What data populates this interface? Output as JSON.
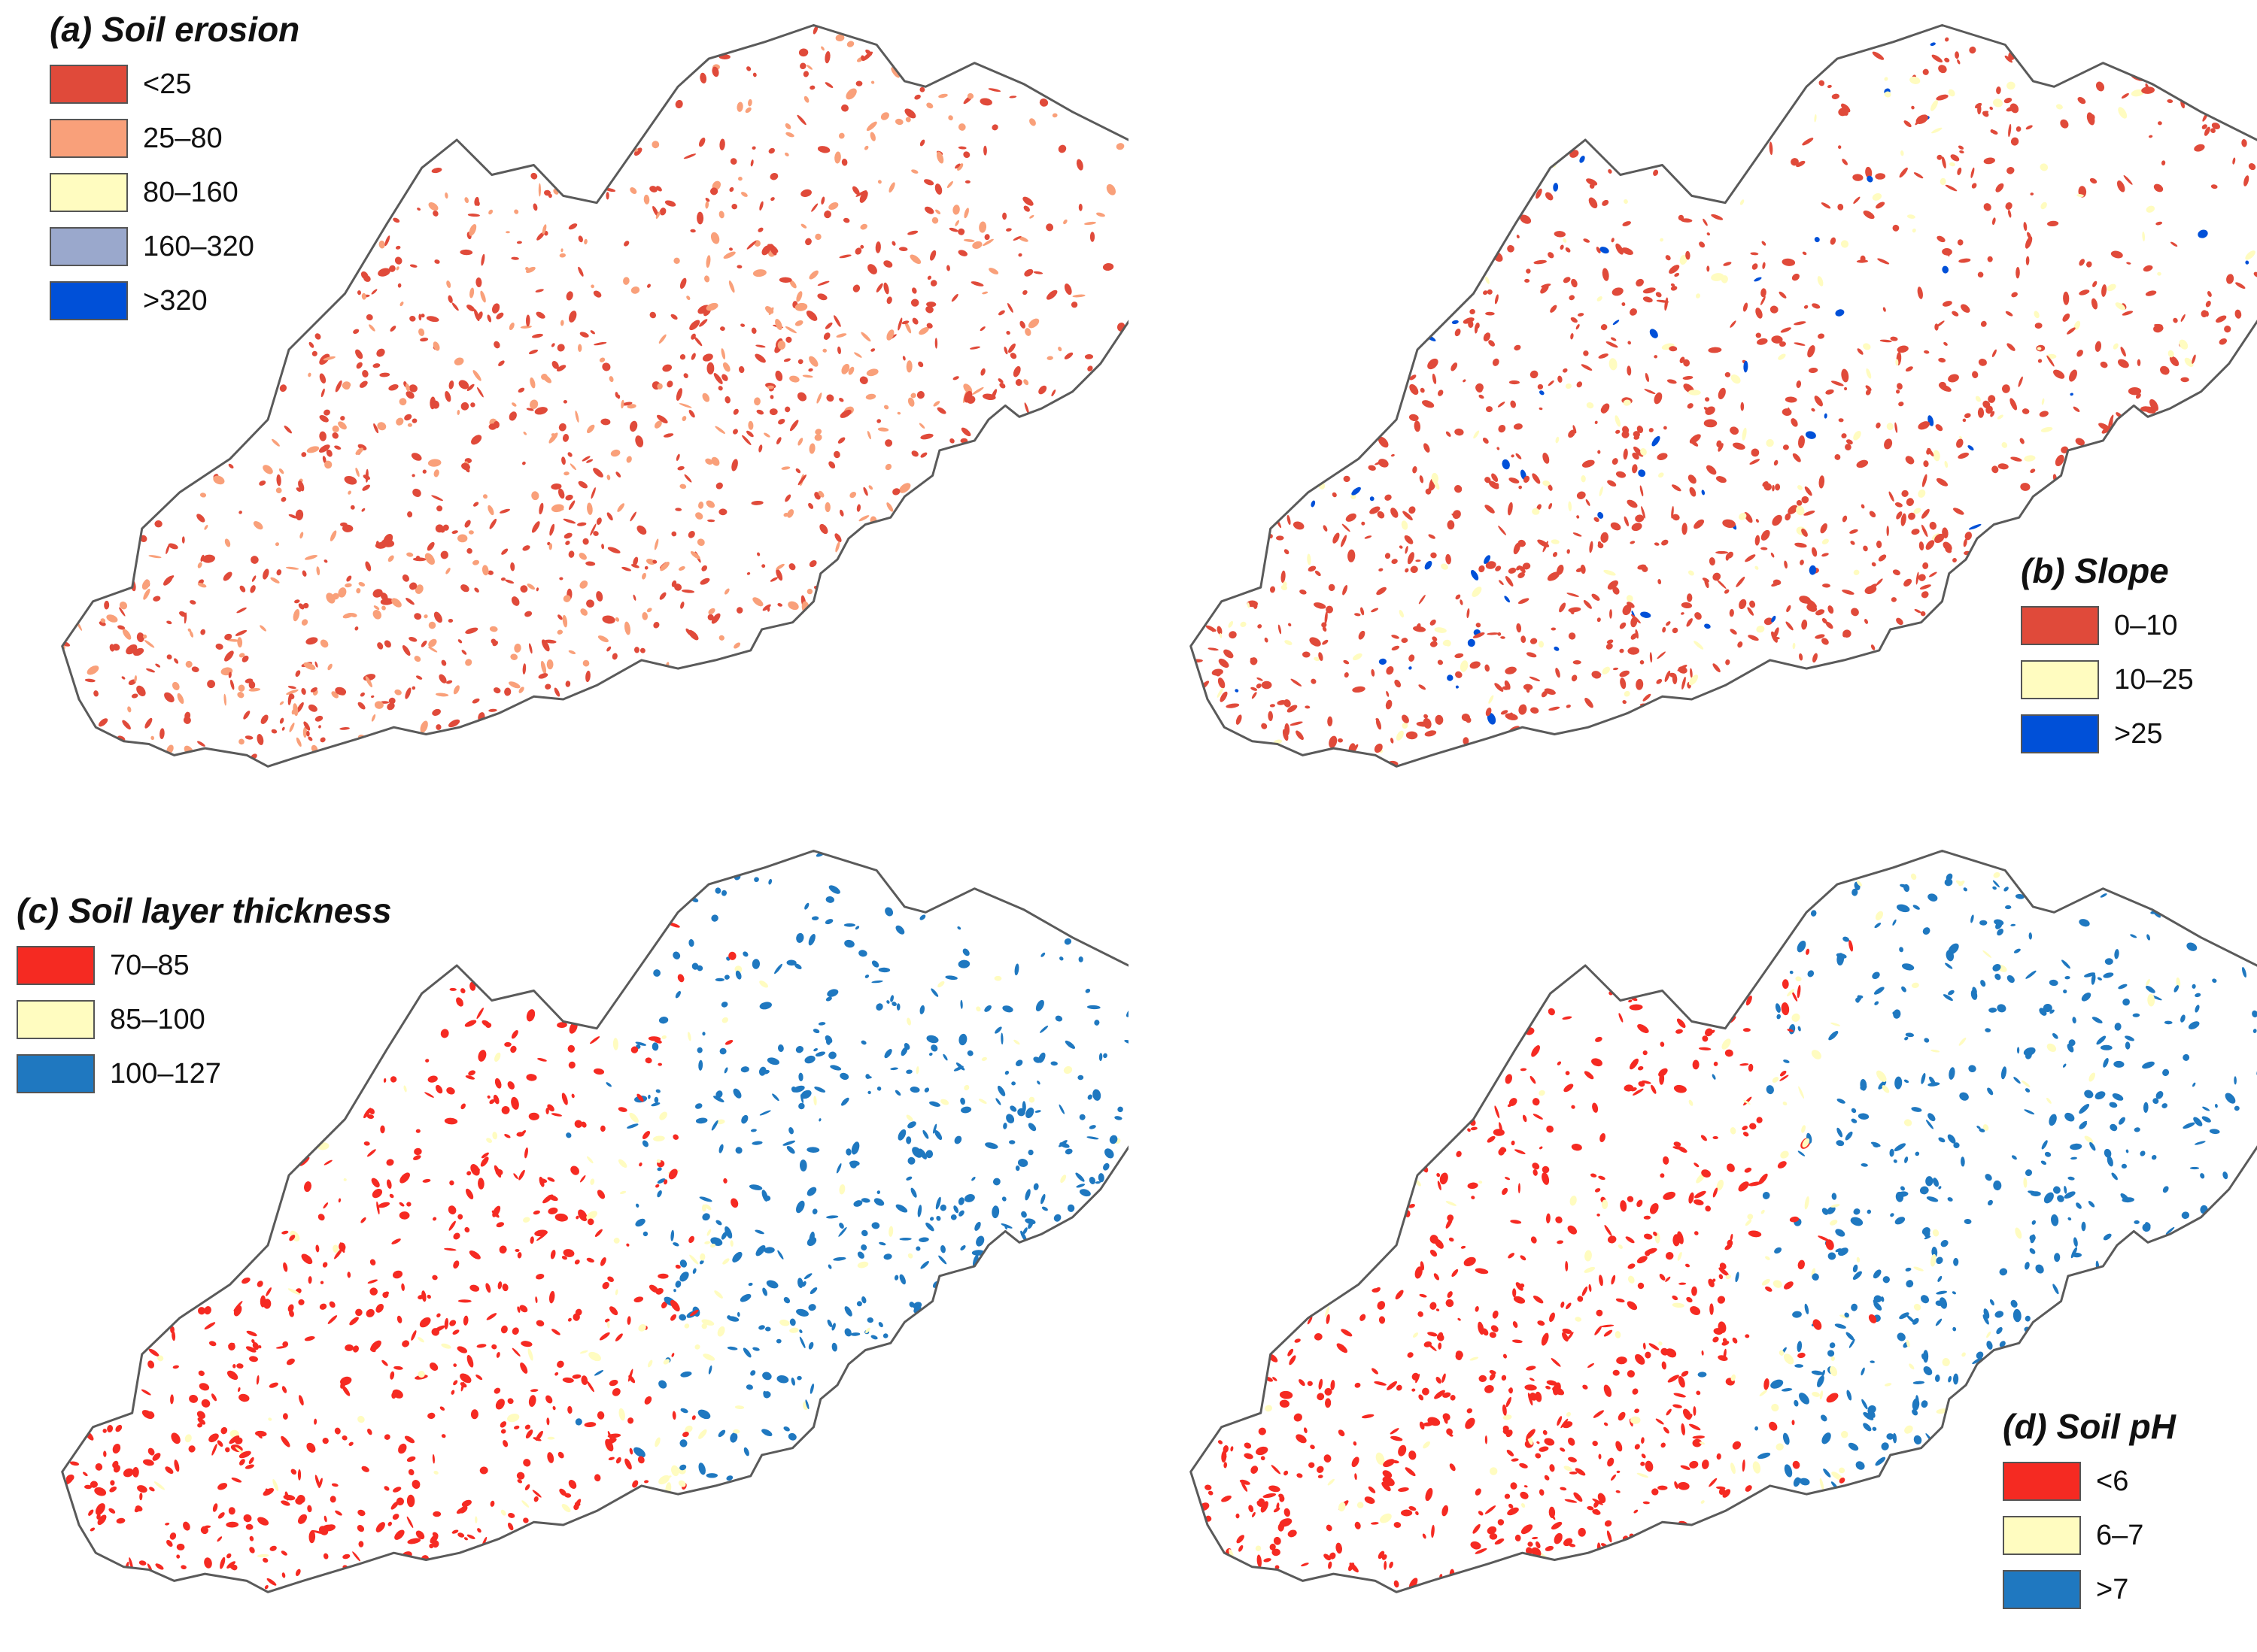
{
  "colors": {
    "outline": "#5a5a5a",
    "red_erosion": "#e04a3a",
    "orange": "#f9a07a",
    "yellow": "#fffcc0",
    "lavender": "#9aa8cc",
    "blue_dark": "#0050d8",
    "red_bright": "#f52a22",
    "blue_teal": "#1f78c0"
  },
  "panels": [
    {
      "id": "a",
      "title": "(a) Soil erosion",
      "legend_position": "top-left",
      "classes": [
        {
          "label": "<25",
          "color": "#e04a3a",
          "weight": 0.62
        },
        {
          "label": "25–80",
          "color": "#f9a07a",
          "weight": 0.38
        },
        {
          "label": "80–160",
          "color": "#fffcc0",
          "weight": 0
        },
        {
          "label": "160–320",
          "color": "#9aa8cc",
          "weight": 0
        },
        {
          "label": ">320",
          "color": "#0050d8",
          "weight": 0
        }
      ],
      "pattern": "erosion"
    },
    {
      "id": "b",
      "title": "(b) Slope",
      "legend_position": "bottom-right",
      "classes": [
        {
          "label": "0–10",
          "color": "#e04a3a",
          "weight": 0.84
        },
        {
          "label": "10–25",
          "color": "#fffcc0",
          "weight": 0.1
        },
        {
          "label": ">25",
          "color": "#0050d8",
          "weight": 0.06
        }
      ],
      "pattern": "slope"
    },
    {
      "id": "c",
      "title": "(c) Soil layer thickness",
      "legend_position": "top-left",
      "classes": [
        {
          "label": "70–85",
          "color": "#f52a22",
          "weight": 0
        },
        {
          "label": "85–100",
          "color": "#fffcc0",
          "weight": 0
        },
        {
          "label": "100–127",
          "color": "#1f78c0",
          "weight": 0
        }
      ],
      "pattern": "thickness"
    },
    {
      "id": "d",
      "title": "(d) Soil pH",
      "legend_position": "bottom-right",
      "classes": [
        {
          "label": "<6",
          "color": "#f52a22",
          "weight": 0
        },
        {
          "label": "6–7",
          "color": "#fffcc0",
          "weight": 0
        },
        {
          "label": ">7",
          "color": "#1f78c0",
          "weight": 0
        }
      ],
      "pattern": "ph"
    }
  ]
}
